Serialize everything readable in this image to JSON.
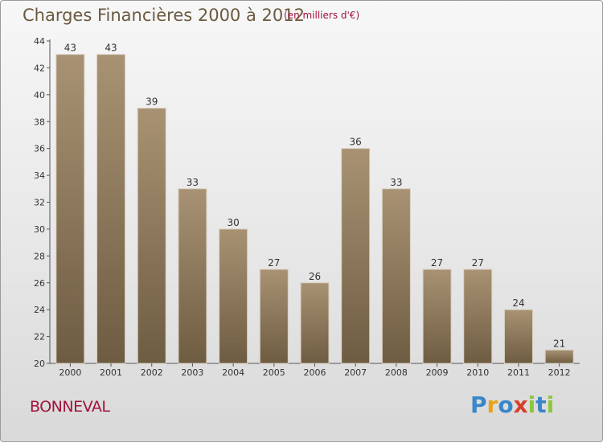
{
  "title": "Charges Financières 2000 à 2012",
  "unit": "(en milliers d'€)",
  "place": "BONNEVAL",
  "logo": {
    "text": "Proxiti",
    "colors": [
      "#3a86c8",
      "#e8a317",
      "#3a86c8",
      "#d63f2a",
      "#8dc63f",
      "#3a86c8",
      "#8dc63f"
    ]
  },
  "chart_data": {
    "type": "bar",
    "title": "Charges Financières 2000 à 2012",
    "subtitle": "(en milliers d'€)",
    "xlabel": "",
    "ylabel": "",
    "categories": [
      "2000",
      "2001",
      "2002",
      "2003",
      "2004",
      "2005",
      "2006",
      "2007",
      "2008",
      "2009",
      "2010",
      "2011",
      "2012"
    ],
    "values": [
      43,
      43,
      39,
      33,
      30,
      27,
      26,
      36,
      33,
      27,
      27,
      24,
      21
    ],
    "ylim": [
      20,
      44
    ],
    "yticks": [
      20,
      22,
      24,
      26,
      28,
      30,
      32,
      34,
      36,
      38,
      40,
      42,
      44
    ],
    "grid": false,
    "bar_color": "#8b7758"
  }
}
